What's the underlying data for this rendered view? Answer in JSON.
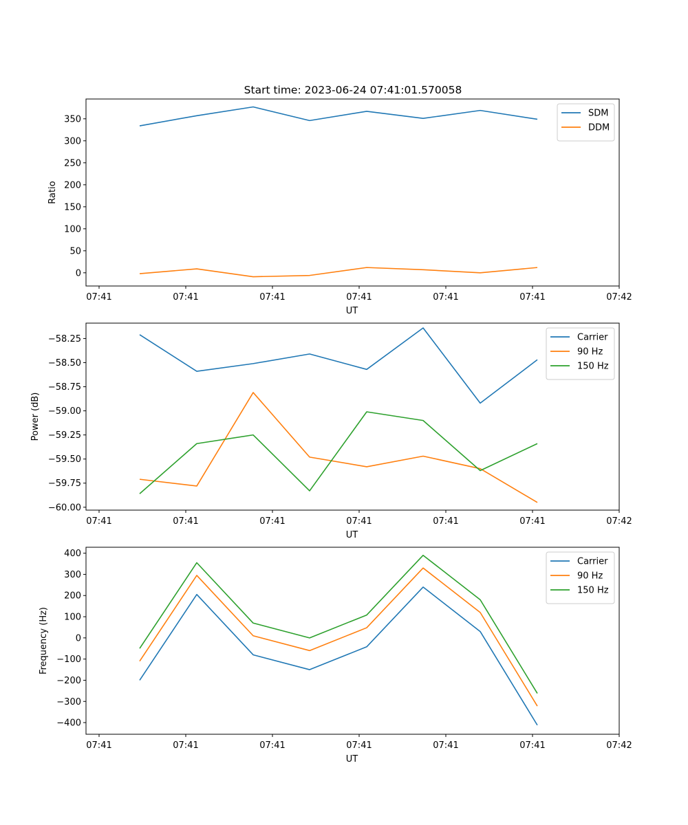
{
  "figure": {
    "title": "Start time: 2023-06-24 07:41:01.570058"
  },
  "chart_data": [
    {
      "type": "line",
      "title": "Start time: 2023-06-24 07:41:01.570058",
      "xlabel": "UT",
      "ylabel": "Ratio",
      "x_tick_labels": [
        "07:41",
        "07:41",
        "07:41",
        "07:41",
        "07:41",
        "07:41",
        "07:42"
      ],
      "ylim": [
        -30,
        395
      ],
      "yticks": [
        0,
        50,
        100,
        150,
        200,
        250,
        300,
        350
      ],
      "ytick_labels": [
        "0",
        "50",
        "100",
        "150",
        "200",
        "250",
        "300",
        "350"
      ],
      "legend_position": "top-right",
      "series": [
        {
          "name": "SDM",
          "color": "#1f77b4",
          "values": [
            334,
            357,
            377,
            346,
            367,
            351,
            369,
            349
          ]
        },
        {
          "name": "DDM",
          "color": "#ff7f0e",
          "values": [
            -2,
            9,
            -9,
            -6,
            12,
            7,
            0,
            12
          ]
        }
      ]
    },
    {
      "type": "line",
      "title": "",
      "xlabel": "UT",
      "ylabel": "Power (dB)",
      "x_tick_labels": [
        "07:41",
        "07:41",
        "07:41",
        "07:41",
        "07:41",
        "07:41",
        "07:42"
      ],
      "ylim": [
        -60.03,
        -58.09
      ],
      "yticks": [
        -60.0,
        -59.75,
        -59.5,
        -59.25,
        -59.0,
        -58.75,
        -58.5,
        -58.25
      ],
      "ytick_labels": [
        "−60.00",
        "−59.75",
        "−59.50",
        "−59.25",
        "−59.00",
        "−58.75",
        "−58.50",
        "−58.25"
      ],
      "legend_position": "top-right",
      "series": [
        {
          "name": "Carrier",
          "color": "#1f77b4",
          "values": [
            -58.21,
            -58.59,
            -58.51,
            -58.41,
            -58.57,
            -58.14,
            -58.92,
            -58.47
          ]
        },
        {
          "name": "90 Hz",
          "color": "#ff7f0e",
          "values": [
            -59.71,
            -59.78,
            -58.81,
            -59.48,
            -59.58,
            -59.47,
            -59.6,
            -59.95
          ]
        },
        {
          "name": "150 Hz",
          "color": "#2ca02c",
          "values": [
            -59.86,
            -59.34,
            -59.25,
            -59.83,
            -59.01,
            -59.1,
            -59.62,
            -59.34
          ]
        }
      ]
    },
    {
      "type": "line",
      "title": "",
      "xlabel": "UT",
      "ylabel": "Frequency (Hz)",
      "x_tick_labels": [
        "07:41",
        "07:41",
        "07:41",
        "07:41",
        "07:41",
        "07:41",
        "07:42"
      ],
      "ylim": [
        -455,
        428
      ],
      "yticks": [
        -400,
        -300,
        -200,
        -100,
        0,
        100,
        200,
        300,
        400
      ],
      "ytick_labels": [
        "−400",
        "−300",
        "−200",
        "−100",
        "0",
        "100",
        "200",
        "300",
        "400"
      ],
      "legend_position": "top-right",
      "series": [
        {
          "name": "Carrier",
          "color": "#1f77b4",
          "values": [
            -200,
            205,
            -80,
            -150,
            -42,
            240,
            30,
            -412
          ]
        },
        {
          "name": "90 Hz",
          "color": "#ff7f0e",
          "values": [
            -110,
            295,
            10,
            -60,
            48,
            330,
            120,
            -322
          ]
        },
        {
          "name": "150 Hz",
          "color": "#2ca02c",
          "values": [
            -50,
            355,
            70,
            0,
            108,
            390,
            180,
            -262
          ]
        }
      ]
    }
  ]
}
